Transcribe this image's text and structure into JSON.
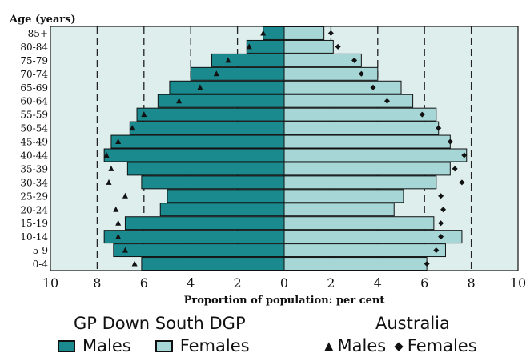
{
  "chart_data": {
    "type": "bar",
    "title": "",
    "y_axis_title": "Age (years)",
    "xlabel": "Proportion of population: per cent",
    "xlim": [
      -10,
      10
    ],
    "x_ticks": [
      "10",
      "8",
      "6",
      "4",
      "2",
      "0",
      "2",
      "4",
      "6",
      "8",
      "10"
    ],
    "gridlines_at": [
      -8,
      -6,
      -4,
      -2,
      2,
      4,
      6,
      8
    ],
    "categories": [
      "85+",
      "80-84",
      "75-79",
      "70-74",
      "65-69",
      "60-64",
      "55-59",
      "50-54",
      "45-49",
      "40-44",
      "35-39",
      "30-34",
      "25-29",
      "20-24",
      "15-19",
      "10-14",
      "5-9",
      "0-4"
    ],
    "series": [
      {
        "name": "Males",
        "group": "GP Down South DGP",
        "side": "left",
        "marker": "bar",
        "color": "#1a8a8e",
        "values": [
          0.9,
          1.6,
          3.1,
          4.0,
          4.9,
          5.4,
          6.3,
          6.6,
          7.4,
          7.7,
          6.7,
          6.1,
          5.0,
          5.3,
          6.8,
          7.7,
          7.3,
          6.1
        ]
      },
      {
        "name": "Females",
        "group": "GP Down South DGP",
        "side": "right",
        "marker": "bar",
        "color": "#a6d6d6",
        "values": [
          1.7,
          2.1,
          3.3,
          4.0,
          5.0,
          5.5,
          6.5,
          6.6,
          7.1,
          7.8,
          7.1,
          6.5,
          5.1,
          4.7,
          6.4,
          7.6,
          6.9,
          6.1
        ]
      },
      {
        "name": "Males",
        "group": "Australia",
        "side": "left",
        "marker": "triangle",
        "values": [
          0.9,
          1.5,
          2.4,
          2.9,
          3.6,
          4.5,
          6.0,
          6.5,
          7.1,
          7.6,
          7.4,
          7.5,
          6.8,
          7.2,
          7.1,
          7.1,
          6.8,
          6.4
        ]
      },
      {
        "name": "Females",
        "group": "Australia",
        "side": "right",
        "marker": "diamond",
        "values": [
          2.0,
          2.3,
          3.0,
          3.3,
          3.8,
          4.4,
          5.9,
          6.6,
          7.1,
          7.7,
          7.3,
          7.6,
          6.7,
          6.8,
          6.7,
          6.7,
          6.5,
          6.1
        ]
      }
    ],
    "legend_placement": "bottom",
    "grid": true
  },
  "legend": {
    "group1_title": "GP Down South DGP",
    "group1_males": "Males",
    "group1_females": "Females",
    "group2_title": "Australia",
    "group2_males": "Males",
    "group2_females": "Females",
    "triangle_glyph": "▲",
    "diamond_glyph": "◆"
  },
  "colors": {
    "plot_background": "#ddeeed",
    "males_bar": "#1a8a8e",
    "females_bar": "#a6d6d6",
    "marker": "#111111"
  }
}
